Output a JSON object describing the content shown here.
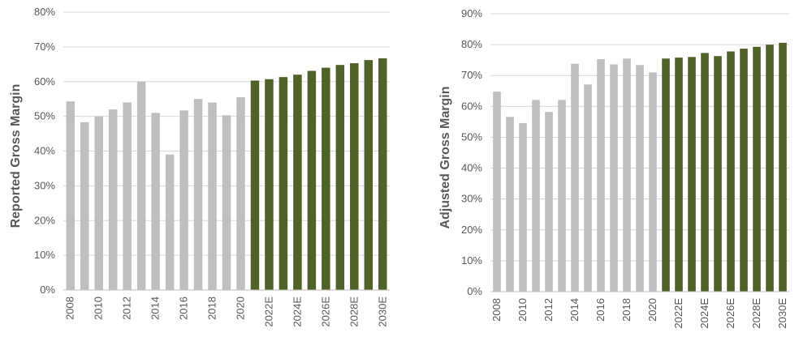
{
  "chart_data": [
    {
      "type": "bar",
      "ylabel": "Reported Gross Margin",
      "ylim": [
        0,
        80
      ],
      "yticks": [
        "0%",
        "10%",
        "20%",
        "30%",
        "40%",
        "50%",
        "60%",
        "70%",
        "80%"
      ],
      "categories": [
        "2008",
        "2009",
        "2010",
        "2011",
        "2012",
        "2013",
        "2014",
        "2015",
        "2016",
        "2017",
        "2018",
        "2019",
        "2020",
        "2021E",
        "2022E",
        "2023E",
        "2024E",
        "2025E",
        "2026E",
        "2027E",
        "2028E",
        "2029E",
        "2030E"
      ],
      "xtick_labels": [
        "2008",
        "2010",
        "2012",
        "2014",
        "2016",
        "2018",
        "2020",
        "2022E",
        "2024E",
        "2026E",
        "2028E",
        "2030E"
      ],
      "values": [
        54.3,
        48.3,
        50.0,
        52.0,
        54.0,
        60.0,
        51.0,
        39.0,
        51.7,
        55.0,
        54.0,
        50.3,
        55.5,
        60.3,
        60.7,
        61.3,
        62.0,
        63.1,
        64.0,
        64.8,
        65.3,
        66.2,
        66.7
      ],
      "colors": {
        "historical": "#bfbfbf",
        "forecast": "#4f6228"
      },
      "forecast_start_index": 13
    },
    {
      "type": "bar",
      "ylabel": "Adjusted Gross Margin",
      "ylim": [
        0,
        90
      ],
      "yticks": [
        "0%",
        "10%",
        "20%",
        "30%",
        "40%",
        "50%",
        "60%",
        "70%",
        "80%",
        "90%"
      ],
      "categories": [
        "2008",
        "2009",
        "2010",
        "2011",
        "2012",
        "2013",
        "2014",
        "2015",
        "2016",
        "2017",
        "2018",
        "2019",
        "2020",
        "2021E",
        "2022E",
        "2023E",
        "2024E",
        "2025E",
        "2026E",
        "2027E",
        "2028E",
        "2029E",
        "2030E"
      ],
      "xtick_labels": [
        "2008",
        "2010",
        "2012",
        "2014",
        "2016",
        "2018",
        "2020",
        "2022E",
        "2024E",
        "2026E",
        "2028E",
        "2030E"
      ],
      "values": [
        64.8,
        56.6,
        54.6,
        62.1,
        58.2,
        62.1,
        73.8,
        67.1,
        75.3,
        73.6,
        75.5,
        73.4,
        71.0,
        75.5,
        75.8,
        76.0,
        77.3,
        76.3,
        77.8,
        78.7,
        79.3,
        80.0,
        80.6
      ],
      "colors": {
        "historical": "#bfbfbf",
        "forecast": "#4f6228"
      },
      "forecast_start_index": 13
    }
  ]
}
